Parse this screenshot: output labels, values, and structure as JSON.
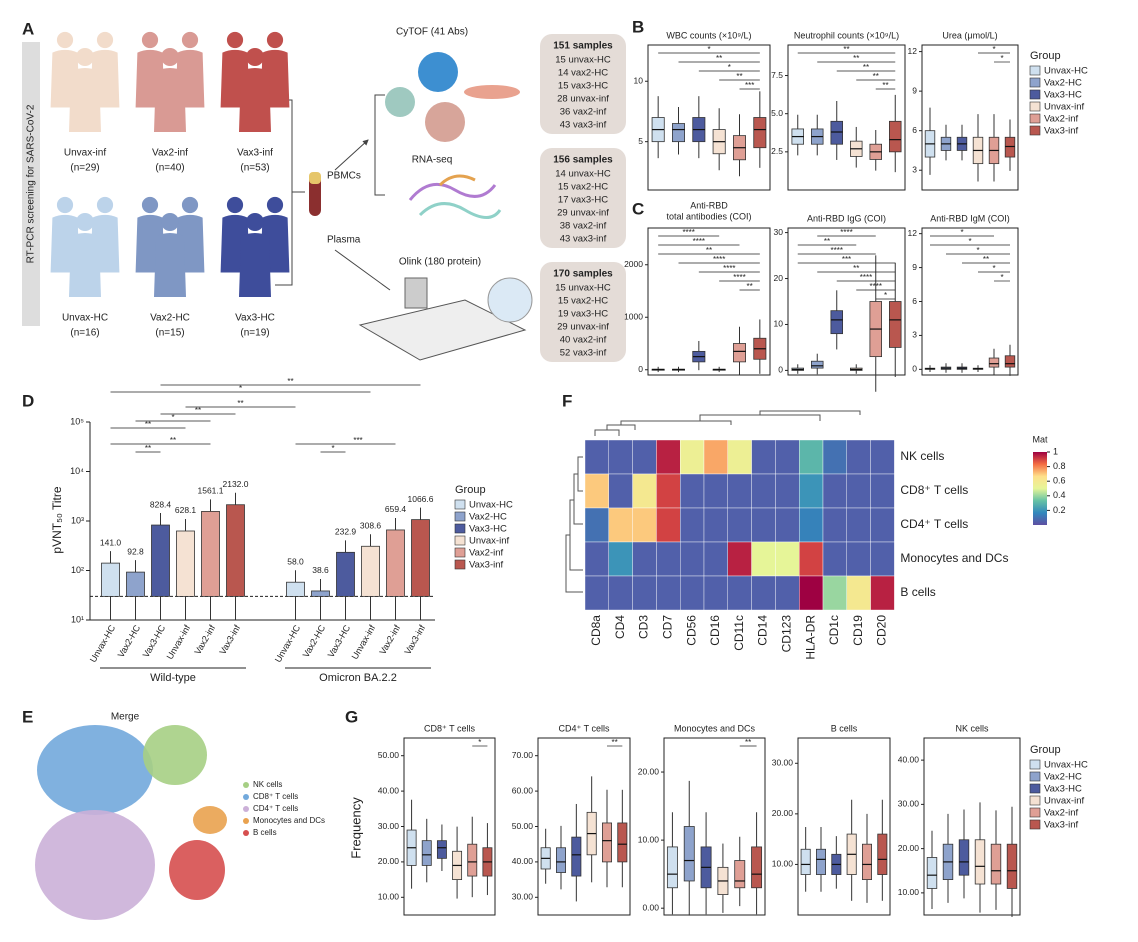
{
  "groups": {
    "names": [
      "Unvax-HC",
      "Vax2-HC",
      "Vax3-HC",
      "Unvax-inf",
      "Vax2-inf",
      "Vax3-inf"
    ],
    "colors": [
      "#cfe0ef",
      "#8ea3cc",
      "#4d5b9e",
      "#f5e2d3",
      "#df9f95",
      "#b9574f"
    ],
    "legend_title": "Group"
  },
  "panel_a": {
    "label": "A",
    "side_label": "RT-PCR screening for SARS-CoV-2",
    "cohorts": [
      {
        "name": "Unvax-inf",
        "n": "(n=29)"
      },
      {
        "name": "Vax2-inf",
        "n": "(n=40)"
      },
      {
        "name": "Vax3-inf",
        "n": "(n=53)"
      },
      {
        "name": "Unvax-HC",
        "n": "(n=16)"
      },
      {
        "name": "Vax2-HC",
        "n": "(n=15)"
      },
      {
        "name": "Vax3-HC",
        "n": "(n=19)"
      }
    ],
    "pbmcs": "PBMCs",
    "plasma": "Plasma",
    "cytof": "CyTOF (41 Abs)",
    "rnaseq": "RNA-seq",
    "olink": "Olink (180 protein)",
    "sample_boxes": [
      {
        "title": "151 samples",
        "lines": [
          "15 unvax-HC",
          "14 vax2-HC",
          "15 vax3-HC",
          "28 unvax-inf",
          "36 vax2-inf",
          "43 vax3-inf"
        ]
      },
      {
        "title": "156 samples",
        "lines": [
          "14 unvax-HC",
          "15 vax2-HC",
          "17 vax3-HC",
          "29 unvax-inf",
          "38 vax2-inf",
          "43 vax3-inf"
        ]
      },
      {
        "title": "170 samples",
        "lines": [
          "15 unvax-HC",
          "15 vax2-HC",
          "19 vax3-HC",
          "29 unvax-inf",
          "40 vax2-inf",
          "52 vax3-inf"
        ]
      }
    ]
  },
  "panel_b": {
    "label": "B",
    "plots": [
      {
        "title": "WBC counts (×10⁹/L)",
        "ylim": [
          1,
          13
        ],
        "yticks": [
          5,
          10
        ],
        "q1": [
          5,
          5,
          5,
          4,
          3.5,
          4.5
        ],
        "median": [
          6,
          6,
          6,
          5,
          4.5,
          6
        ],
        "q3": [
          7,
          6.5,
          7,
          6,
          5.5,
          7
        ],
        "sig": [
          "***",
          "**",
          "*",
          "**",
          "*"
        ]
      },
      {
        "title": "Neutrophil counts (×10⁹/L)",
        "ylim": [
          0,
          9.5
        ],
        "yticks": [
          2.5,
          {
            "value": 5,
            "label": "5.0"
          },
          7.5
        ],
        "q1": [
          3,
          3,
          3,
          2.2,
          2,
          2.5
        ],
        "median": [
          3.5,
          3.5,
          3.8,
          2.7,
          2.5,
          3.3
        ],
        "q3": [
          4,
          4,
          4.5,
          3.2,
          3,
          4.5
        ],
        "sig": [
          "**",
          "**",
          "**",
          "**",
          "**"
        ]
      },
      {
        "title": "Urea (μmol/L)",
        "ylim": [
          1.5,
          12.5
        ],
        "yticks": [
          3,
          6,
          9,
          12
        ],
        "q1": [
          4,
          4.5,
          4.5,
          3.5,
          3.5,
          4
        ],
        "median": [
          5,
          5,
          5,
          4.5,
          4.5,
          4.8
        ],
        "q3": [
          6,
          5.5,
          5.5,
          5.5,
          5.5,
          5.5
        ],
        "sig": [
          "*",
          "*"
        ]
      }
    ]
  },
  "panel_c": {
    "label": "C",
    "plots": [
      {
        "title_lines": [
          "Anti-RBD",
          "total antibodies (COI)"
        ],
        "ylim": [
          -100,
          2700
        ],
        "yticks": [
          0,
          1000,
          2000
        ],
        "q1": [
          0,
          0,
          150,
          0,
          150,
          200
        ],
        "median": [
          5,
          5,
          250,
          5,
          350,
          400
        ],
        "q3": [
          10,
          10,
          350,
          10,
          500,
          600
        ],
        "sig": [
          "**",
          "****",
          "****",
          "****",
          "**",
          "****",
          "****"
        ]
      },
      {
        "title": "Anti-RBD IgG (COI)",
        "ylim": [
          -1,
          31
        ],
        "yticks": [
          0,
          10,
          20,
          30
        ],
        "q1": [
          0,
          0.5,
          8,
          0,
          3,
          5
        ],
        "median": [
          0.2,
          1,
          11,
          0.2,
          9,
          11
        ],
        "q3": [
          0.5,
          2,
          13,
          0.5,
          15,
          15
        ],
        "sig": [
          "*",
          "****",
          "****",
          "**",
          "***",
          "****",
          "**",
          "****"
        ]
      },
      {
        "title": "Anti-RBD IgM (COI)",
        "ylim": [
          -0.5,
          12.5
        ],
        "yticks": [
          0,
          3,
          6,
          9,
          12
        ],
        "q1": [
          0,
          0,
          0,
          0,
          0.2,
          0.2
        ],
        "median": [
          0.05,
          0.1,
          0.1,
          0.05,
          0.5,
          0.5
        ],
        "q3": [
          0.1,
          0.2,
          0.2,
          0.1,
          1,
          1.2
        ],
        "sig": [
          "*",
          "*",
          "**",
          "*",
          "*",
          "*"
        ]
      }
    ]
  },
  "panel_d": {
    "label": "D",
    "type": "box",
    "ylabel": "pVNT₅₀ Titre",
    "log_scale": true,
    "ylim": [
      10,
      100000
    ],
    "yticks": [
      {
        "value": 10,
        "label": "10¹"
      },
      {
        "value": 100,
        "label": "10²"
      },
      {
        "value": 1000,
        "label": "10³"
      },
      {
        "value": 10000,
        "label": "10⁴"
      },
      {
        "value": 100000,
        "label": "10⁵"
      }
    ],
    "detection_limit": 30,
    "series": [
      {
        "name": "Wild-type",
        "values": [
          141,
          92.8,
          828.4,
          628.1,
          1561.1,
          2132
        ],
        "value_labels": [
          "141.0",
          "92.8",
          "828.4",
          "628.1",
          "1561.1",
          "2132.0"
        ],
        "sig": [
          "**",
          "**"
        ]
      },
      {
        "name": "Omicron BA.2.2",
        "values": [
          58,
          38.6,
          232.9,
          308.6,
          659.4,
          1066.6
        ],
        "value_labels": [
          "58.0",
          "38.6",
          "232.9",
          "308.6",
          "659.4",
          "1066.6"
        ],
        "sig": [
          "*",
          "***"
        ]
      }
    ],
    "cross_sig": [
      "**",
      "*",
      "**",
      "**",
      "*",
      "**"
    ]
  },
  "panel_e": {
    "label": "E",
    "title": "Merge",
    "clusters": [
      {
        "name": "NK cells",
        "color": "#a6cf84"
      },
      {
        "name": "CD8⁺ T cells",
        "color": "#72a9dc"
      },
      {
        "name": "CD4⁺ T cells",
        "color": "#cbb0d8"
      },
      {
        "name": "Monocytes and DCs",
        "color": "#e9a24f"
      },
      {
        "name": "B cells",
        "color": "#d64f4f"
      }
    ]
  },
  "panel_f": {
    "label": "F",
    "type": "heatmap",
    "rows": [
      "NK cells",
      "CD8⁺ T cells",
      "CD4⁺ T cells",
      "Monocytes and DCs",
      "B cells"
    ],
    "columns": [
      "CD8a",
      "CD4",
      "CD3",
      "CD7",
      "CD56",
      "CD16",
      "CD11c",
      "CD14",
      "CD123",
      "HLA-DR",
      "CD1c",
      "CD19",
      "CD20"
    ],
    "values": [
      [
        0.05,
        0.05,
        0.05,
        0.95,
        0.55,
        0.75,
        0.55,
        0.05,
        0.05,
        0.3,
        0.1,
        0.05,
        0.05
      ],
      [
        0.7,
        0.05,
        0.6,
        0.9,
        0.05,
        0.05,
        0.05,
        0.05,
        0.05,
        0.2,
        0.05,
        0.05,
        0.05
      ],
      [
        0.1,
        0.7,
        0.7,
        0.9,
        0.05,
        0.05,
        0.05,
        0.05,
        0.05,
        0.15,
        0.05,
        0.05,
        0.05
      ],
      [
        0.05,
        0.2,
        0.05,
        0.05,
        0.05,
        0.05,
        0.95,
        0.5,
        0.5,
        0.9,
        0.05,
        0.05,
        0.05
      ],
      [
        0.05,
        0.05,
        0.05,
        0.05,
        0.05,
        0.05,
        0.05,
        0.05,
        0.05,
        1,
        0.4,
        0.6,
        0.95
      ]
    ],
    "colorbar_title": "Mat",
    "clim": [
      0,
      1
    ],
    "colorbar_ticks": [
      0.2,
      0.4,
      0.6,
      0.8,
      1
    ],
    "colormap": [
      "#5e4fa2",
      "#3288bd",
      "#66c2a5",
      "#e6f598",
      "#fee08b",
      "#f46d43",
      "#9e0142"
    ]
  },
  "panel_g": {
    "label": "G",
    "ylabel": "Frequency",
    "plots": [
      {
        "title": "CD8⁺ T cells",
        "ylim": [
          5,
          55
        ],
        "yticks": [
          {
            "value": 10,
            "label": "10.00"
          },
          {
            "value": 20,
            "label": "20.00"
          },
          {
            "value": 30,
            "label": "30.00"
          },
          {
            "value": 40,
            "label": "40.00"
          },
          {
            "value": 50,
            "label": "50.00"
          }
        ],
        "q1": [
          19,
          19,
          21,
          15,
          16,
          16
        ],
        "median": [
          24,
          22,
          24,
          19,
          20,
          20
        ],
        "q3": [
          29,
          26,
          26,
          23,
          25,
          24
        ],
        "sig": [
          "*"
        ]
      },
      {
        "title": "CD4⁺ T cells",
        "ylim": [
          25,
          75
        ],
        "yticks": [
          {
            "value": 30,
            "label": "30.00"
          },
          {
            "value": 40,
            "label": "40.00"
          },
          {
            "value": 50,
            "label": "50.00"
          },
          {
            "value": 60,
            "label": "60.00"
          },
          {
            "value": 70,
            "label": "70.00"
          }
        ],
        "q1": [
          38,
          37,
          36,
          42,
          40,
          40
        ],
        "median": [
          41,
          40,
          42,
          48,
          46,
          45
        ],
        "q3": [
          44,
          44,
          47,
          54,
          51,
          51
        ],
        "sig": [
          "**"
        ]
      },
      {
        "title": "Monocytes and DCs",
        "ylim": [
          -1,
          25
        ],
        "yticks": [
          {
            "value": 0,
            "label": "0.00"
          },
          {
            "value": 10,
            "label": "10.00"
          },
          {
            "value": 20,
            "label": "20.00"
          }
        ],
        "q1": [
          3,
          4,
          3,
          2,
          3,
          3
        ],
        "median": [
          5,
          7,
          6,
          4,
          4,
          5
        ],
        "q3": [
          9,
          12,
          9,
          6,
          7,
          9
        ],
        "sig": [
          "**"
        ]
      },
      {
        "title": "B cells",
        "ylim": [
          0,
          35
        ],
        "yticks": [
          {
            "value": 10,
            "label": "10.00"
          },
          {
            "value": 20,
            "label": "20.00"
          },
          {
            "value": 30,
            "label": "30.00"
          }
        ],
        "q1": [
          8,
          8,
          8,
          8,
          7,
          8
        ],
        "median": [
          10,
          11,
          10,
          12,
          10,
          11
        ],
        "q3": [
          13,
          13,
          12,
          16,
          14,
          16
        ],
        "sig": []
      },
      {
        "title": "NK cells",
        "ylim": [
          5,
          45
        ],
        "yticks": [
          {
            "value": 10,
            "label": "10.00"
          },
          {
            "value": 20,
            "label": "20.00"
          },
          {
            "value": 30,
            "label": "30.00"
          },
          {
            "value": 40,
            "label": "40.00"
          }
        ],
        "q1": [
          11,
          13,
          14,
          12,
          12,
          11
        ],
        "median": [
          14,
          17,
          17,
          16,
          15,
          15
        ],
        "q3": [
          18,
          21,
          22,
          22,
          21,
          21
        ],
        "sig": []
      }
    ]
  }
}
